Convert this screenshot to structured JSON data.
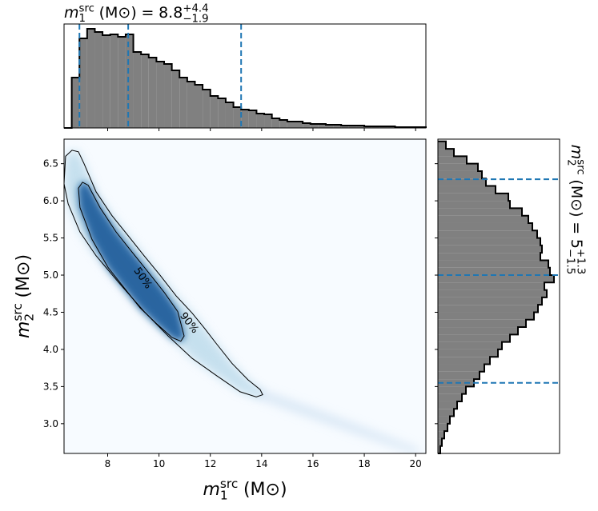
{
  "chart_data": [
    {
      "type": "contour",
      "xlim": [
        6.3,
        20.4
      ],
      "ylim": [
        2.6,
        6.83
      ],
      "xticks": [
        8,
        10,
        12,
        14,
        16,
        18,
        20
      ],
      "yticks": [
        {
          "value": 3,
          "label": "3.0"
        },
        3.5,
        {
          "value": 4,
          "label": "4.0"
        },
        4.5,
        {
          "value": 5,
          "label": "5.0"
        },
        5.5,
        {
          "value": 6,
          "label": "6.0"
        },
        6.5
      ],
      "xlabel": {
        "symbol": "m",
        "sub": "1",
        "sup": "src",
        "unit": "(M⊙)"
      },
      "ylabel": {
        "symbol": "m",
        "sub": "2",
        "sup": "src",
        "unit": "(M⊙)"
      },
      "color": "#2171b5",
      "contours": [
        {
          "label": "90%",
          "x": [
            6.36,
            6.61,
            6.86,
            7.08,
            7.55,
            8.17,
            8.8,
            9.42,
            10.04,
            10.67,
            11.29,
            11.76,
            12.23,
            12.85,
            13.47,
            13.94,
            14.04,
            13.79,
            13.16,
            12.23,
            11.29,
            10.36,
            9.42,
            8.48,
            7.55,
            6.92,
            6.46,
            6.3
          ],
          "y": [
            6.6,
            6.68,
            6.66,
            6.5,
            6.12,
            5.8,
            5.53,
            5.26,
            5.0,
            4.72,
            4.49,
            4.29,
            4.08,
            3.81,
            3.59,
            3.46,
            3.39,
            3.36,
            3.43,
            3.65,
            3.88,
            4.18,
            4.51,
            4.88,
            5.26,
            5.58,
            5.96,
            6.23
          ]
        },
        {
          "label": "50%",
          "x": [
            6.86,
            7.02,
            7.24,
            7.7,
            8.33,
            8.95,
            9.58,
            10.2,
            10.73,
            10.98,
            10.85,
            10.51,
            9.89,
            9.26,
            8.64,
            8.02,
            7.39,
            6.92
          ],
          "y": [
            6.17,
            6.25,
            6.21,
            5.91,
            5.58,
            5.31,
            5.04,
            4.77,
            4.51,
            4.18,
            4.11,
            4.16,
            4.35,
            4.56,
            4.83,
            5.1,
            5.48,
            5.91
          ]
        }
      ]
    },
    {
      "type": "histogram",
      "title": {
        "symbol": "m",
        "sub": "1",
        "sup": "src",
        "unit": "(M⊙)",
        "relation": "=",
        "value": "8.8",
        "upper": "+4.4",
        "lower": "−1.9"
      },
      "color": "#808080",
      "line_color": "#1f77b4",
      "xlim": [
        6.3,
        20.4
      ],
      "ylim": [
        0,
        130
      ],
      "bins": [
        6.3,
        6.6,
        6.9,
        7.2,
        7.5,
        7.8,
        8.1,
        8.4,
        8.7,
        9.0,
        9.3,
        9.6,
        9.9,
        10.2,
        10.5,
        10.8,
        11.1,
        11.4,
        11.7,
        12.0,
        12.3,
        12.6,
        12.9,
        13.2,
        13.5,
        13.8,
        14.1,
        14.4,
        14.7,
        15.0,
        15.3,
        15.6,
        15.9,
        16.2,
        16.5,
        16.8,
        17.1,
        17.4,
        17.7,
        18.0,
        18.3,
        18.6,
        18.9,
        19.2,
        19.5,
        19.8,
        20.1,
        20.4
      ],
      "values": [
        0,
        63,
        112,
        124,
        120,
        116,
        117,
        114,
        117,
        95,
        92,
        88,
        83,
        80,
        72,
        63,
        58,
        54,
        48,
        40,
        37,
        32,
        26,
        23,
        22,
        18,
        17,
        12,
        10,
        8,
        8,
        6,
        5,
        5,
        4,
        4,
        3,
        3,
        3,
        2,
        2,
        2,
        2,
        1,
        1,
        1,
        1
      ],
      "quantiles": [
        6.9,
        8.8,
        13.2
      ]
    },
    {
      "type": "histogram",
      "orientation": "horizontal",
      "title": {
        "symbol": "m",
        "sub": "2",
        "sup": "src",
        "unit": "(M⊙)",
        "relation": "=",
        "value": "5",
        "upper": "+1.3",
        "lower": "−1.5"
      },
      "color": "#808080",
      "line_color": "#1f77b4",
      "ylim": [
        2.6,
        6.83
      ],
      "xlim": [
        0,
        152
      ],
      "bins": [
        2.6,
        2.7,
        2.8,
        2.9,
        3.0,
        3.1,
        3.2,
        3.3,
        3.4,
        3.5,
        3.6,
        3.7,
        3.8,
        3.9,
        4.0,
        4.1,
        4.2,
        4.3,
        4.4,
        4.5,
        4.6,
        4.7,
        4.8,
        4.9,
        5.0,
        5.1,
        5.2,
        5.3,
        5.4,
        5.5,
        5.6,
        5.7,
        5.8,
        5.9,
        6.0,
        6.1,
        6.2,
        6.3,
        6.4,
        6.5,
        6.6,
        6.7,
        6.8
      ],
      "values": [
        3,
        5,
        8,
        12,
        15,
        20,
        24,
        30,
        35,
        45,
        52,
        58,
        65,
        75,
        80,
        90,
        100,
        110,
        120,
        125,
        130,
        136,
        133,
        145,
        140,
        138,
        128,
        130,
        128,
        124,
        118,
        113,
        105,
        90,
        88,
        72,
        60,
        55,
        50,
        36,
        20,
        10
      ],
      "quantiles": [
        3.55,
        5.0,
        6.29
      ]
    }
  ]
}
